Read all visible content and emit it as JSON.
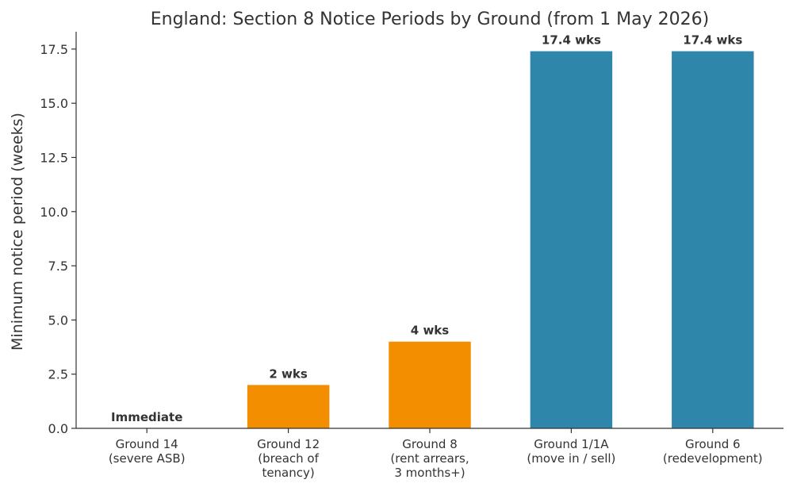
{
  "chart_data": {
    "type": "bar",
    "title": "England: Section 8 Notice Periods by Ground (from 1 May 2026)",
    "xlabel": "",
    "ylabel": "Minimum notice period (weeks)",
    "ylim": [
      0,
      18.3
    ],
    "yticks": [
      "0.0",
      "2.5",
      "5.0",
      "7.5",
      "10.0",
      "12.5",
      "15.0",
      "17.5"
    ],
    "grid": false,
    "categories": [
      [
        "Ground 14",
        "(severe ASB)"
      ],
      [
        "Ground 12",
        "(breach of",
        "tenancy)"
      ],
      [
        "Ground 8",
        "(rent arrears,",
        "3 months+)"
      ],
      [
        "Ground 1/1A",
        "(move in / sell)"
      ],
      [
        "Ground 6",
        "(redevelopment)"
      ]
    ],
    "values": [
      0,
      2,
      4,
      17.4,
      17.4
    ],
    "data_labels": [
      "Immediate",
      "2 wks",
      "4 wks",
      "17.4 wks",
      "17.4 wks"
    ],
    "colors": [
      "#f28e00",
      "#f28e00",
      "#f28e00",
      "#2e86ab",
      "#2e86ab"
    ]
  }
}
